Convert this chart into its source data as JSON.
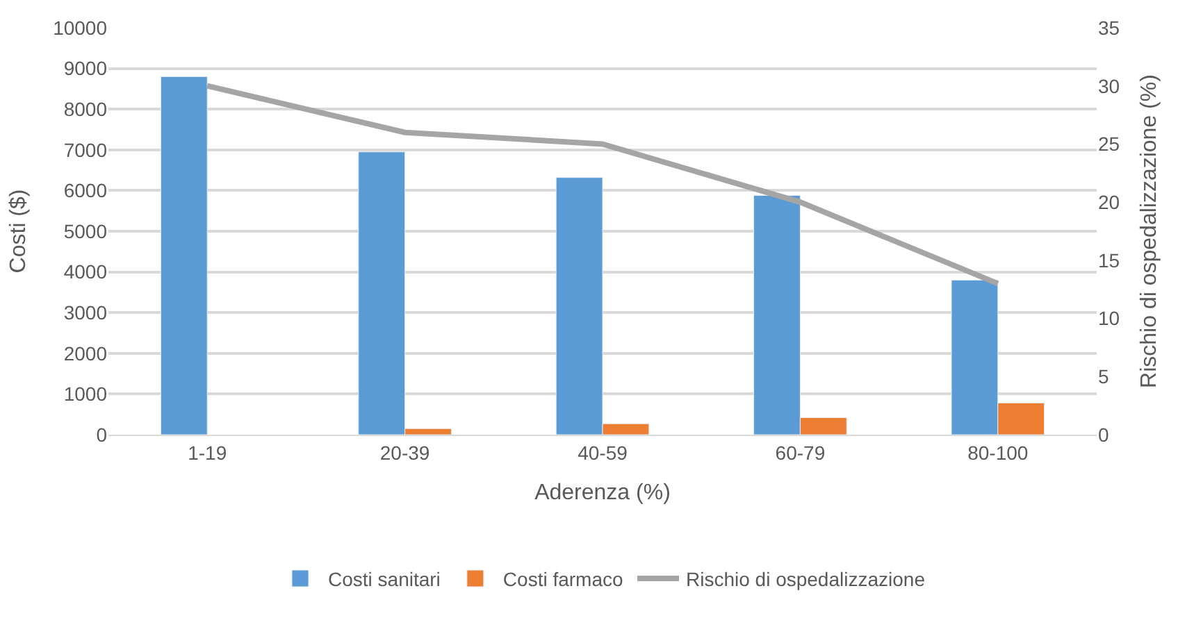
{
  "chart_data": {
    "type": "bar",
    "xlabel": "Aderenza (%)",
    "ylabel": "Costi ($)",
    "y2label": "Rischio di ospedalizzazione (%)",
    "categories": [
      "1-19",
      "20-39",
      "40-59",
      "60-79",
      "80-100"
    ],
    "series": [
      {
        "name": "Costi sanitari",
        "color": "#5b9bd5",
        "values": [
          8800,
          6950,
          6320,
          5880,
          3800
        ]
      },
      {
        "name": "Costi farmaco",
        "color": "#ed7d31",
        "values": [
          null,
          150,
          270,
          420,
          780
        ]
      },
      {
        "name": "Rischio di ospedalizzazione",
        "type": "line",
        "axis": "y2",
        "color": "#a5a5a5",
        "values": [
          30,
          26,
          25,
          20,
          13
        ]
      }
    ],
    "ylim": [
      0,
      10000
    ],
    "yticks": [
      0,
      1000,
      2000,
      3000,
      4000,
      5000,
      6000,
      7000,
      8000,
      9000,
      10000
    ],
    "y2lim": [
      0,
      35
    ],
    "y2ticks": [
      0,
      5,
      10,
      15,
      20,
      25,
      30,
      35
    ],
    "grid": "y",
    "legend": "bottom",
    "marker": "none",
    "line_style": "solid"
  }
}
